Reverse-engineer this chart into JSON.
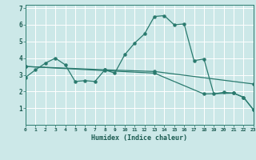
{
  "xlabel": "Humidex (Indice chaleur)",
  "bg_color": "#cce8e8",
  "line_color": "#2a7a6e",
  "grid_color": "#ffffff",
  "xlim": [
    0,
    23
  ],
  "ylim": [
    0,
    7.2
  ],
  "line1_x": [
    0,
    1,
    2,
    3,
    4,
    5,
    6,
    7,
    8,
    9,
    10,
    11,
    12,
    13,
    14,
    15,
    16,
    17,
    18,
    19,
    20,
    21,
    22,
    23
  ],
  "line1_y": [
    2.85,
    3.3,
    3.7,
    4.0,
    3.6,
    2.6,
    2.65,
    2.6,
    3.3,
    3.1,
    4.2,
    4.9,
    5.45,
    6.5,
    6.55,
    6.0,
    6.05,
    3.85,
    3.95,
    1.85,
    1.95,
    1.9,
    1.65,
    0.9
  ],
  "line2_x": [
    0,
    8,
    13,
    23
  ],
  "line2_y": [
    3.5,
    3.3,
    3.2,
    2.45
  ],
  "line3_x": [
    0,
    8,
    13,
    18,
    21,
    22,
    23
  ],
  "line3_y": [
    3.5,
    3.25,
    3.1,
    1.85,
    1.9,
    1.65,
    0.9
  ],
  "yticks": [
    1,
    2,
    3,
    4,
    5,
    6,
    7
  ],
  "xtick_labels": [
    "0",
    "1",
    "2",
    "3",
    "4",
    "5",
    "6",
    "7",
    "8",
    "9",
    "10",
    "11",
    "12",
    "13",
    "14",
    "15",
    "16",
    "17",
    "18",
    "19",
    "20",
    "21",
    "22",
    "23"
  ]
}
